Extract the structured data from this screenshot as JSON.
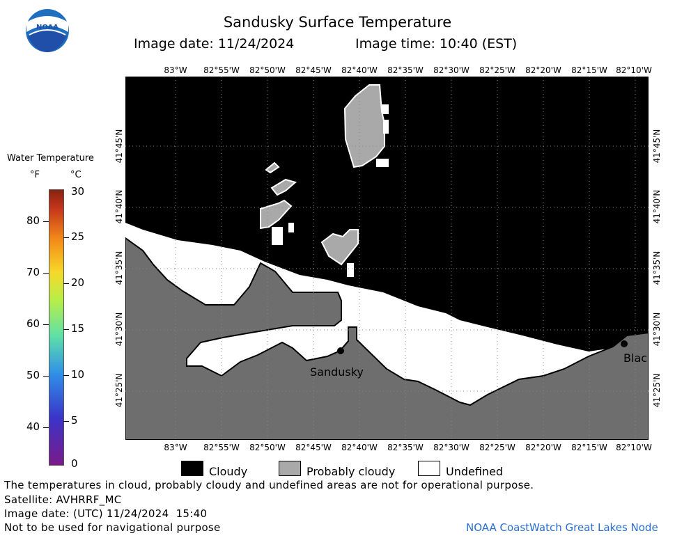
{
  "header": {
    "title": "Sandusky Surface Temperature",
    "image_date": "Image date: 11/24/2024",
    "image_time": "Image time: 10:40 (EST)"
  },
  "logo": {
    "text": "NOAA",
    "icon": "noaa-logo-icon"
  },
  "axes": {
    "longitudes": [
      "83°W",
      "82°55'W",
      "82°50'W",
      "82°45'W",
      "82°40'W",
      "82°35'W",
      "82°30'W",
      "82°25'W",
      "82°20'W",
      "82°15'W",
      "82°10'W"
    ],
    "latitudes": [
      "41°45'N",
      "41°40'N",
      "41°35'N",
      "41°30'N",
      "41°25'N"
    ]
  },
  "colorbar": {
    "title": "Water Temperature",
    "unit_f": "°F",
    "unit_c": "°C",
    "ticks_f": [
      "80",
      "70",
      "60",
      "50",
      "40"
    ],
    "ticks_c": [
      "30",
      "25",
      "20",
      "15",
      "10",
      "5",
      "0"
    ]
  },
  "places": {
    "sandusky": "Sandusky",
    "edge_label": "Blac"
  },
  "key": {
    "cloudy": "Cloudy",
    "probably_cloudy": "Probably cloudy",
    "undefined": "Undefined",
    "colors": {
      "cloudy": "#000000",
      "probably_cloudy": "#a9a9a9",
      "undefined": "#ffffff",
      "land": "#6e6e6e"
    }
  },
  "footer": {
    "disclaimer": "The temperatures in cloud, probably cloudy and undefined areas are not for operational purpose.",
    "satellite": "Satellite: AVHRRF_MC",
    "utc_date": "Image date: (UTC) 11/24/2024  15:40",
    "nav_warning": "Not to be used for navigational purpose",
    "credit": "NOAA CoastWatch Great Lakes Node"
  }
}
